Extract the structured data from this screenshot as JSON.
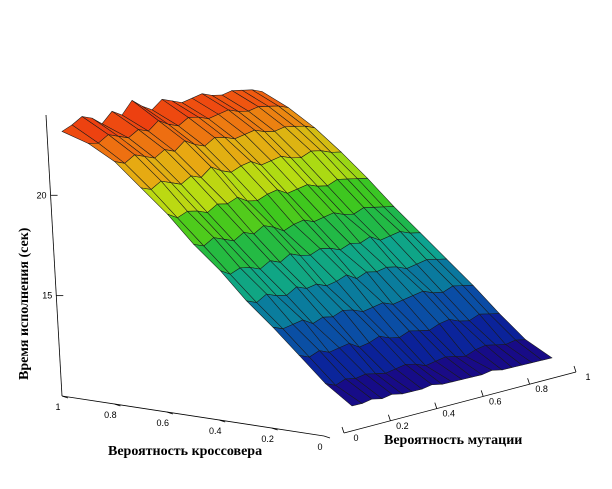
{
  "chart_data": {
    "type": "surface3d",
    "title": "",
    "xlabel": "Вероятность кроссовера",
    "ylabel": "Вероятность мутации",
    "zlabel": "Время исполнения (сек)",
    "x_ticks": [
      "1",
      "0.8",
      "0.6",
      "0.4",
      "0.2",
      "0"
    ],
    "y_ticks": [
      "0",
      "0.2",
      "0.4",
      "0.6",
      "0.8",
      "1"
    ],
    "z_ticks": [
      "15",
      "20"
    ],
    "xlim": [
      0,
      1
    ],
    "ylim": [
      0,
      1
    ],
    "zlim": [
      10,
      24
    ],
    "grid_x": [
      0,
      0.0909,
      0.1818,
      0.2727,
      0.3636,
      0.4545,
      0.5455,
      0.6364,
      0.7273,
      0.8182,
      0.9091,
      1
    ],
    "grid_y": [
      0,
      0.05,
      0.1,
      0.15,
      0.2,
      0.25,
      0.3,
      0.35,
      0.4,
      0.45,
      0.5,
      0.55,
      0.6,
      0.65,
      0.7,
      0.75,
      0.8,
      0.85,
      0.9,
      0.95,
      1
    ],
    "z_values": [
      [
        10.6,
        10.6,
        10.7,
        10.6,
        10.7,
        10.6,
        10.6,
        10.6,
        10.7,
        10.6,
        10.6,
        10.6,
        10.6,
        10.6,
        10.7,
        10.6,
        10.6,
        10.6,
        10.6,
        10.6,
        10.6
      ],
      [
        11.6,
        11.4,
        11.6,
        11.5,
        11.6,
        11.5,
        11.4,
        11.5,
        11.6,
        11.5,
        11.3,
        11.4,
        11.5,
        11.4,
        11.3,
        11.5,
        11.6,
        11.5,
        11.4,
        11.5,
        11.4
      ],
      [
        12.9,
        12.7,
        12.9,
        12.7,
        12.8,
        12.9,
        12.6,
        12.7,
        12.9,
        12.7,
        12.6,
        12.8,
        12.7,
        12.6,
        12.8,
        12.9,
        12.7,
        12.6,
        12.8,
        12.7,
        12.6
      ],
      [
        14.2,
        14.0,
        14.1,
        14.2,
        13.9,
        14.1,
        14.0,
        14.2,
        14.1,
        13.9,
        14.0,
        14.1,
        13.9,
        14.0,
        14.1,
        14.2,
        14.0,
        13.9,
        14.1,
        14.0,
        13.9
      ],
      [
        15.4,
        15.2,
        15.5,
        15.3,
        15.2,
        15.5,
        15.3,
        15.4,
        15.2,
        15.3,
        15.5,
        15.2,
        15.4,
        15.3,
        15.4,
        15.3,
        15.1,
        15.2,
        15.3,
        15.2,
        15.1
      ],
      [
        16.8,
        16.5,
        16.7,
        16.6,
        16.4,
        16.7,
        16.5,
        16.8,
        16.6,
        16.5,
        16.7,
        16.6,
        16.4,
        16.6,
        16.5,
        16.7,
        16.4,
        16.5,
        16.6,
        16.4,
        16.3
      ],
      [
        18.0,
        17.8,
        18.1,
        17.9,
        17.7,
        18.0,
        17.8,
        18.1,
        17.9,
        17.6,
        17.8,
        17.9,
        17.7,
        17.8,
        17.9,
        17.7,
        17.6,
        17.8,
        17.7,
        17.6,
        17.5
      ],
      [
        19.4,
        19.1,
        19.3,
        19.2,
        19.0,
        19.3,
        19.2,
        19.4,
        19.1,
        19.0,
        19.2,
        19.3,
        19.0,
        19.1,
        19.2,
        19.0,
        18.9,
        19.1,
        19.0,
        18.9,
        18.8
      ],
      [
        20.6,
        20.4,
        20.7,
        20.5,
        20.3,
        20.6,
        20.4,
        20.8,
        20.5,
        20.3,
        20.5,
        20.6,
        20.3,
        20.4,
        20.5,
        20.3,
        20.2,
        20.4,
        20.3,
        20.1,
        20.0
      ],
      [
        21.8,
        21.6,
        21.9,
        21.7,
        21.5,
        21.8,
        21.6,
        22.0,
        21.7,
        21.5,
        21.8,
        21.7,
        21.5,
        21.6,
        21.7,
        21.5,
        21.4,
        21.5,
        21.4,
        21.3,
        21.1
      ],
      [
        22.6,
        22.5,
        22.8,
        22.6,
        22.4,
        22.7,
        22.5,
        22.9,
        22.6,
        22.4,
        22.7,
        22.6,
        22.4,
        22.5,
        22.6,
        22.4,
        22.3,
        22.4,
        22.3,
        22.2,
        22.0
      ],
      [
        23.1,
        23.3,
        23.6,
        23.4,
        23.0,
        23.5,
        23.2,
        23.8,
        23.4,
        23.1,
        23.5,
        23.3,
        23.1,
        23.2,
        23.3,
        23.1,
        23.0,
        23.1,
        23.0,
        22.9,
        22.7
      ]
    ],
    "colormap": [
      "#3a0a7a",
      "#0c0c8c",
      "#0a3aa8",
      "#0a6aa0",
      "#0ba098",
      "#1fb84a",
      "#3fc81e",
      "#b8dc12",
      "#e8a812",
      "#f05a10",
      "#e81010"
    ],
    "grid": false,
    "legend": "none"
  }
}
